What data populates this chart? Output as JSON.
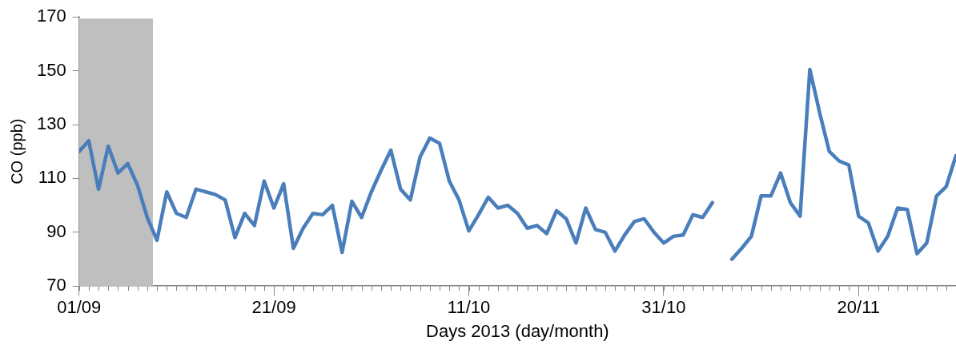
{
  "chart_data": {
    "type": "line",
    "xlabel": "Days 2013 (day/month)",
    "ylabel": "CO (ppb)",
    "x": [
      "2013-09-01",
      "2013-09-02",
      "2013-09-03",
      "2013-09-04",
      "2013-09-05",
      "2013-09-06",
      "2013-09-07",
      "2013-09-08",
      "2013-09-09",
      "2013-09-10",
      "2013-09-11",
      "2013-09-12",
      "2013-09-13",
      "2013-09-14",
      "2013-09-15",
      "2013-09-16",
      "2013-09-17",
      "2013-09-18",
      "2013-09-19",
      "2013-09-20",
      "2013-09-21",
      "2013-09-22",
      "2013-09-23",
      "2013-09-24",
      "2013-09-25",
      "2013-09-26",
      "2013-09-27",
      "2013-09-28",
      "2013-09-29",
      "2013-09-30",
      "2013-10-01",
      "2013-10-02",
      "2013-10-03",
      "2013-10-04",
      "2013-10-05",
      "2013-10-06",
      "2013-10-07",
      "2013-10-08",
      "2013-10-09",
      "2013-10-10",
      "2013-10-11",
      "2013-10-12",
      "2013-10-13",
      "2013-10-14",
      "2013-10-15",
      "2013-10-16",
      "2013-10-17",
      "2013-10-18",
      "2013-10-19",
      "2013-10-20",
      "2013-10-21",
      "2013-10-22",
      "2013-10-23",
      "2013-10-24",
      "2013-10-25",
      "2013-10-26",
      "2013-10-27",
      "2013-10-28",
      "2013-10-29",
      "2013-10-30",
      "2013-10-31",
      "2013-11-01",
      "2013-11-02",
      "2013-11-03",
      "2013-11-04",
      "2013-11-05",
      "2013-11-06",
      "2013-11-07",
      "2013-11-08",
      "2013-11-09",
      "2013-11-10",
      "2013-11-11",
      "2013-11-12",
      "2013-11-13",
      "2013-11-14",
      "2013-11-15",
      "2013-11-16",
      "2013-11-17",
      "2013-11-18",
      "2013-11-19",
      "2013-11-20",
      "2013-11-21",
      "2013-11-22",
      "2013-11-23",
      "2013-11-24",
      "2013-11-25",
      "2013-11-26",
      "2013-11-27",
      "2013-11-28",
      "2013-11-29",
      "2013-11-30"
    ],
    "series": [
      {
        "color": "#4a7ebb",
        "values": [
          120,
          124,
          106,
          122,
          112,
          115.5,
          107.5,
          95.5,
          87,
          105,
          97,
          95.5,
          106,
          105,
          104,
          102,
          88,
          97,
          92.5,
          109,
          99,
          108,
          84,
          91.5,
          97,
          96.5,
          100,
          82.5,
          101.5,
          95.5,
          105,
          113,
          120.5,
          106,
          102,
          118,
          125,
          123,
          109,
          102,
          90.5,
          96.5,
          103,
          99,
          100,
          97,
          91.5,
          92.5,
          89.5,
          98,
          95,
          86,
          99,
          91,
          90,
          83,
          89,
          94,
          95,
          90,
          86,
          88.5,
          89,
          96.5,
          95.5,
          101,
          null,
          80,
          84,
          88.5,
          103.5,
          103.5,
          112,
          101,
          96,
          150.5,
          134.5,
          120,
          116.5,
          115,
          96,
          93.5,
          83,
          88.5,
          99,
          98.5,
          82,
          86,
          103.5,
          107,
          118.5
        ]
      }
    ],
    "xlim": [
      "2013-09-01",
      "2013-11-30"
    ],
    "xticks": [
      {
        "value": "2013-09-01",
        "label": "01/09"
      },
      {
        "value": "2013-09-21",
        "label": "21/09"
      },
      {
        "value": "2013-10-11",
        "label": "11/10"
      },
      {
        "value": "2013-10-31",
        "label": "31/10"
      },
      {
        "value": "2013-11-20",
        "label": "20/11"
      }
    ],
    "ylim": [
      70,
      170
    ],
    "yticks": [
      70,
      90,
      110,
      130,
      150,
      170
    ],
    "bands": [
      {
        "axis": "x",
        "from": "2013-09-01",
        "to": "2013-09-08T14:00",
        "color": "#bfbfbf"
      }
    ],
    "grid": false,
    "legend": false,
    "marker": "none",
    "line_style": "solid"
  }
}
